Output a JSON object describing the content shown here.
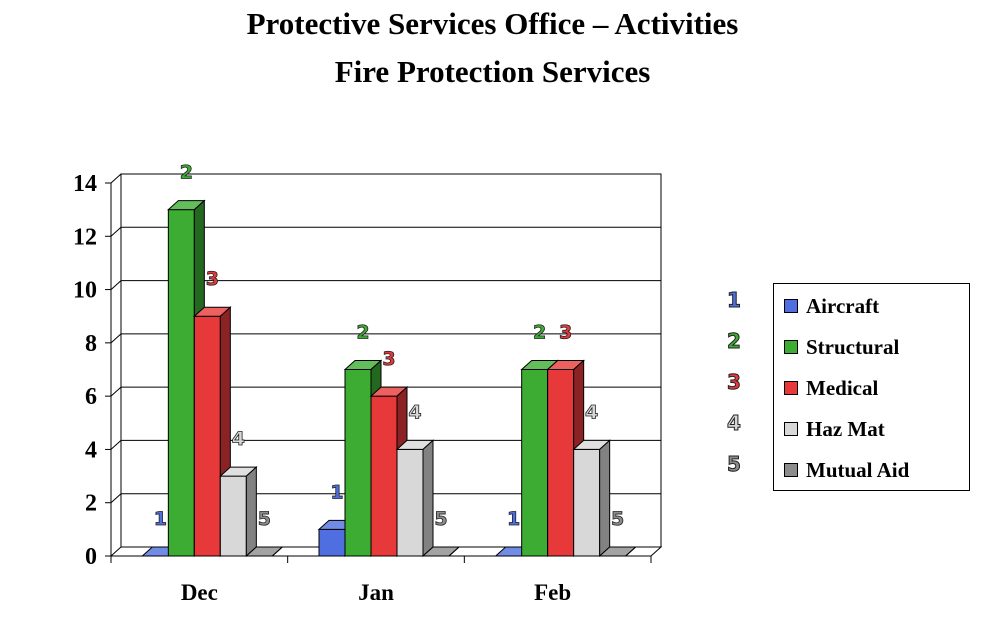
{
  "title": "Protective Services Office – Activities",
  "subtitle": "Fire Protection Services",
  "colors": {
    "aircraft": "#4f6fe0",
    "structural": "#3cac32",
    "medical": "#e8393a",
    "hazmat": "#d8d8d8",
    "mutual_aid": "#8c8c8c"
  },
  "chart_data": {
    "type": "bar",
    "categories": [
      "Dec",
      "Jan",
      "Feb"
    ],
    "series": [
      {
        "name": "Aircraft",
        "marker": "1",
        "color": "#4f6fe0",
        "values": [
          0,
          1,
          0
        ]
      },
      {
        "name": "Structural",
        "marker": "2",
        "color": "#3cac32",
        "values": [
          13,
          7,
          7
        ]
      },
      {
        "name": "Medical",
        "marker": "3",
        "color": "#e8393a",
        "values": [
          9,
          6,
          7
        ]
      },
      {
        "name": "Haz Mat",
        "marker": "4",
        "color": "#d8d8d8",
        "values": [
          3,
          4,
          4
        ]
      },
      {
        "name": "Mutual Aid",
        "marker": "5",
        "color": "#8c8c8c",
        "values": [
          0,
          0,
          0
        ]
      }
    ],
    "ylim": [
      0,
      14
    ],
    "yticks": [
      "0",
      "2",
      "4",
      "6",
      "8",
      "10",
      "12",
      "14"
    ],
    "grid": true,
    "legend": "right",
    "three_d": true
  }
}
